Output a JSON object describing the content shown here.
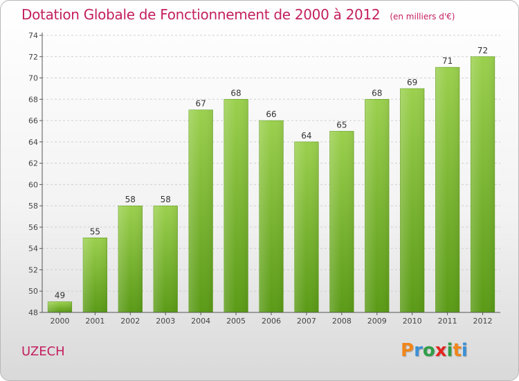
{
  "title": "Dotation Globale de Fonctionnement de 2000 à 2012",
  "subtitle": "(en milliers d'€)",
  "place": "UZECH",
  "brand": {
    "text": "Proxiti",
    "letter_colors": [
      "#f0861a",
      "#3b8fd6",
      "#2f9e48",
      "#e32620",
      "#2f9e48",
      "#f0861a",
      "#3b8fd6"
    ]
  },
  "colors": {
    "title": "#c31f5e",
    "bar_top": "#9bd04e",
    "bar_bottom": "#5a9a16",
    "grid": "#cfcfcf",
    "axis": "#555555"
  },
  "chart_data": {
    "type": "bar",
    "title": "Dotation Globale de Fonctionnement de 2000 à 2012",
    "subtitle": "(en milliers d'€)",
    "xlabel": "",
    "ylabel": "",
    "categories": [
      "2000",
      "2001",
      "2002",
      "2003",
      "2004",
      "2005",
      "2006",
      "2007",
      "2008",
      "2009",
      "2010",
      "2011",
      "2012"
    ],
    "values": [
      49,
      55,
      58,
      58,
      67,
      68,
      66,
      64,
      65,
      68,
      69,
      71,
      72
    ],
    "ylim": [
      48,
      74
    ],
    "yticks": [
      48,
      50,
      52,
      54,
      56,
      58,
      60,
      62,
      64,
      66,
      68,
      70,
      72,
      74
    ],
    "grid": true,
    "legend": "none",
    "data_labels": true
  }
}
